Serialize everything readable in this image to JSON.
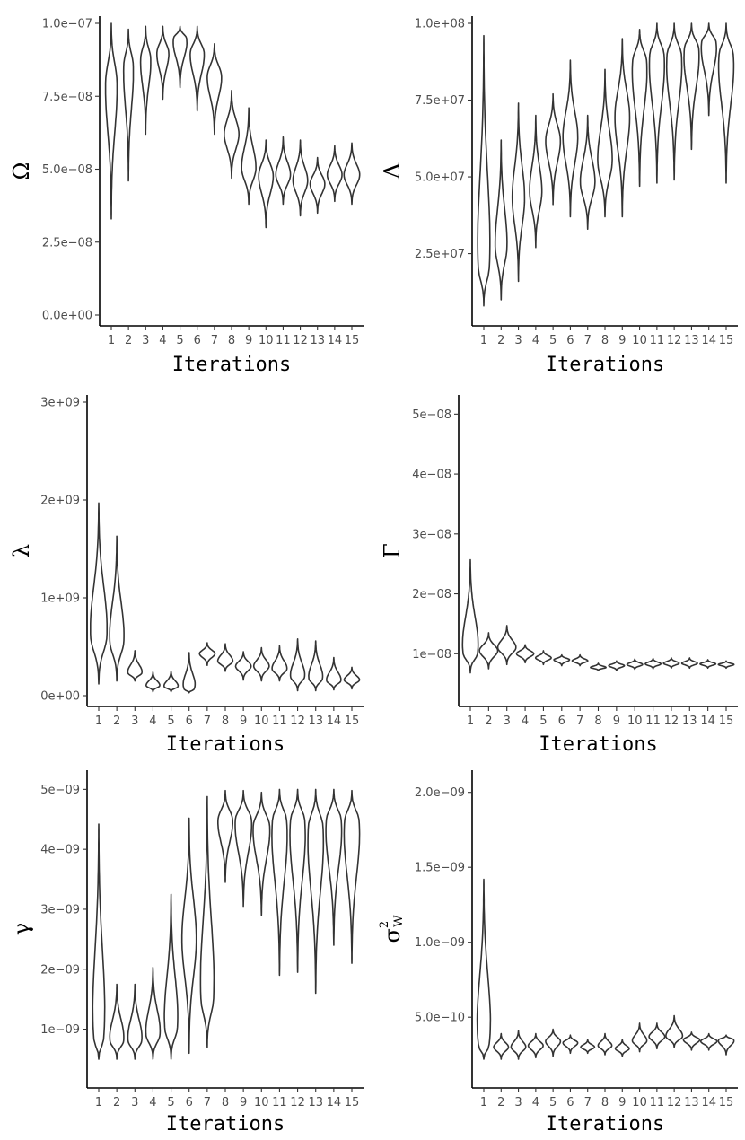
{
  "chart_data": [
    {
      "type": "violin",
      "title": "",
      "xlabel": "Iterations",
      "ylabel": "Ω",
      "ylim": [
        0,
        1e-07
      ],
      "yticks": [
        0,
        2.5e-08,
        5e-08,
        7.5e-08,
        1e-07
      ],
      "ytick_labels": [
        "0.0e+00",
        "2.5e−08",
        "5.0e−08",
        "7.5e−08",
        "1.0e−07"
      ],
      "categories": [
        "1",
        "2",
        "3",
        "4",
        "5",
        "6",
        "7",
        "8",
        "9",
        "10",
        "11",
        "12",
        "13",
        "14",
        "15"
      ],
      "violins": [
        {
          "min": 3.3e-08,
          "max": 1e-07,
          "mode": 8e-08,
          "width": 0.25
        },
        {
          "min": 4.6e-08,
          "max": 9.8e-08,
          "mode": 8.6e-08,
          "width": 0.22
        },
        {
          "min": 6.2e-08,
          "max": 9.9e-08,
          "mode": 8.8e-08,
          "width": 0.22
        },
        {
          "min": 7.4e-08,
          "max": 9.9e-08,
          "mode": 9e-08,
          "width": 0.25
        },
        {
          "min": 7.8e-08,
          "max": 9.9e-08,
          "mode": 9.5e-08,
          "width": 0.32
        },
        {
          "min": 7e-08,
          "max": 9.9e-08,
          "mode": 9e-08,
          "width": 0.3
        },
        {
          "min": 6.2e-08,
          "max": 9.3e-08,
          "mode": 8.2e-08,
          "width": 0.3
        },
        {
          "min": 4.7e-08,
          "max": 7.7e-08,
          "mode": 6.2e-08,
          "width": 0.3
        },
        {
          "min": 3.8e-08,
          "max": 7.1e-08,
          "mode": 5e-08,
          "width": 0.3
        },
        {
          "min": 3e-08,
          "max": 6e-08,
          "mode": 4.8e-08,
          "width": 0.3
        },
        {
          "min": 3.8e-08,
          "max": 6.1e-08,
          "mode": 4.8e-08,
          "width": 0.3
        },
        {
          "min": 3.4e-08,
          "max": 6e-08,
          "mode": 4.6e-08,
          "width": 0.3
        },
        {
          "min": 3.5e-08,
          "max": 5.4e-08,
          "mode": 4.5e-08,
          "width": 0.3
        },
        {
          "min": 3.9e-08,
          "max": 5.8e-08,
          "mode": 4.8e-08,
          "width": 0.3
        },
        {
          "min": 3.8e-08,
          "max": 5.9e-08,
          "mode": 4.8e-08,
          "width": 0.32
        }
      ]
    },
    {
      "type": "violin",
      "title": "",
      "xlabel": "Iterations",
      "ylabel": "Λ",
      "ylim": [
        5000000.0,
        100000000.0
      ],
      "yticks": [
        25000000.0,
        50000000.0,
        75000000.0,
        100000000.0
      ],
      "ytick_labels": [
        "2.5e+07",
        "5.0e+07",
        "7.5e+07",
        "1.0e+08"
      ],
      "categories": [
        "1",
        "2",
        "3",
        "4",
        "5",
        "6",
        "7",
        "8",
        "9",
        "10",
        "11",
        "12",
        "13",
        "14",
        "15"
      ],
      "violins": [
        {
          "min": 8000000.0,
          "max": 96000000.0,
          "mode": 20000000.0,
          "width": 0.3
        },
        {
          "min": 10000000.0,
          "max": 62000000.0,
          "mode": 27000000.0,
          "width": 0.25
        },
        {
          "min": 16000000.0,
          "max": 74000000.0,
          "mode": 43000000.0,
          "width": 0.25
        },
        {
          "min": 27000000.0,
          "max": 70000000.0,
          "mode": 45000000.0,
          "width": 0.25
        },
        {
          "min": 41000000.0,
          "max": 77000000.0,
          "mode": 62000000.0,
          "width": 0.3
        },
        {
          "min": 37000000.0,
          "max": 88000000.0,
          "mode": 63000000.0,
          "width": 0.3
        },
        {
          "min": 33000000.0,
          "max": 70000000.0,
          "mode": 48000000.0,
          "width": 0.3
        },
        {
          "min": 37000000.0,
          "max": 85000000.0,
          "mode": 55000000.0,
          "width": 0.3
        },
        {
          "min": 37000000.0,
          "max": 95000000.0,
          "mode": 70000000.0,
          "width": 0.3
        },
        {
          "min": 47000000.0,
          "max": 98000000.0,
          "mode": 88000000.0,
          "width": 0.34
        },
        {
          "min": 48000000.0,
          "max": 100000000.0,
          "mode": 90000000.0,
          "width": 0.35
        },
        {
          "min": 49000000.0,
          "max": 100000000.0,
          "mode": 90000000.0,
          "width": 0.35
        },
        {
          "min": 59000000.0,
          "max": 100000000.0,
          "mode": 92000000.0,
          "width": 0.35
        },
        {
          "min": 70000000.0,
          "max": 100000000.0,
          "mode": 94000000.0,
          "width": 0.35
        },
        {
          "min": 48000000.0,
          "max": 100000000.0,
          "mode": 90000000.0,
          "width": 0.35
        }
      ]
    },
    {
      "type": "violin",
      "title": "",
      "xlabel": "Iterations",
      "ylabel": "λ",
      "ylim": [
        0,
        3000000000.0
      ],
      "yticks": [
        0,
        1000000000.0,
        2000000000.0,
        3000000000.0
      ],
      "ytick_labels": [
        "0e+00",
        "1e+09",
        "2e+09",
        "3e+09"
      ],
      "categories": [
        "1",
        "2",
        "3",
        "4",
        "5",
        "6",
        "7",
        "8",
        "9",
        "10",
        "11",
        "12",
        "13",
        "14",
        "15"
      ],
      "violins": [
        {
          "min": 120000000.0,
          "max": 1970000000.0,
          "mode": 600000000.0,
          "width": 0.35
        },
        {
          "min": 150000000.0,
          "max": 1630000000.0,
          "mode": 550000000.0,
          "width": 0.3
        },
        {
          "min": 150000000.0,
          "max": 460000000.0,
          "mode": 230000000.0,
          "width": 0.3
        },
        {
          "min": 40000000.0,
          "max": 240000000.0,
          "mode": 100000000.0,
          "width": 0.28
        },
        {
          "min": 40000000.0,
          "max": 250000000.0,
          "mode": 90000000.0,
          "width": 0.3
        },
        {
          "min": 30000000.0,
          "max": 440000000.0,
          "mode": 60000000.0,
          "width": 0.3
        },
        {
          "min": 310000000.0,
          "max": 540000000.0,
          "mode": 430000000.0,
          "width": 0.3
        },
        {
          "min": 250000000.0,
          "max": 530000000.0,
          "mode": 350000000.0,
          "width": 0.3
        },
        {
          "min": 160000000.0,
          "max": 450000000.0,
          "mode": 300000000.0,
          "width": 0.3
        },
        {
          "min": 150000000.0,
          "max": 490000000.0,
          "mode": 300000000.0,
          "width": 0.3
        },
        {
          "min": 150000000.0,
          "max": 510000000.0,
          "mode": 270000000.0,
          "width": 0.3
        },
        {
          "min": 50000000.0,
          "max": 580000000.0,
          "mode": 190000000.0,
          "width": 0.3
        },
        {
          "min": 50000000.0,
          "max": 560000000.0,
          "mode": 170000000.0,
          "width": 0.3
        },
        {
          "min": 60000000.0,
          "max": 390000000.0,
          "mode": 150000000.0,
          "width": 0.3
        },
        {
          "min": 70000000.0,
          "max": 290000000.0,
          "mode": 160000000.0,
          "width": 0.3
        }
      ]
    },
    {
      "type": "violin",
      "title": "",
      "xlabel": "Iterations",
      "ylabel": "Γ",
      "ylim": [
        3e-09,
        5.2e-08
      ],
      "yticks": [
        1e-08,
        2e-08,
        3e-08,
        4e-08,
        5e-08
      ],
      "ytick_labels": [
        "1e−08",
        "2e−08",
        "3e−08",
        "4e−08",
        "5e−08"
      ],
      "categories": [
        "1",
        "2",
        "3",
        "4",
        "5",
        "6",
        "7",
        "8",
        "9",
        "10",
        "11",
        "12",
        "13",
        "14",
        "15"
      ],
      "violins": [
        {
          "min": 6.8e-09,
          "max": 2.57e-08,
          "mode": 1e-08,
          "width": 0.35
        },
        {
          "min": 7.5e-09,
          "max": 1.35e-08,
          "mode": 1.05e-08,
          "width": 0.35
        },
        {
          "min": 8.2e-09,
          "max": 1.47e-08,
          "mode": 1.1e-08,
          "width": 0.35
        },
        {
          "min": 8.5e-09,
          "max": 1.15e-08,
          "mode": 1e-08,
          "width": 0.33
        },
        {
          "min": 8.2e-09,
          "max": 1.05e-08,
          "mode": 9.3e-09,
          "width": 0.3
        },
        {
          "min": 8e-09,
          "max": 9.8e-09,
          "mode": 9e-09,
          "width": 0.3
        },
        {
          "min": 8e-09,
          "max": 9.8e-09,
          "mode": 8.8e-09,
          "width": 0.3
        },
        {
          "min": 7.2e-09,
          "max": 8.4e-09,
          "mode": 7.7e-09,
          "width": 0.3
        },
        {
          "min": 7.2e-09,
          "max": 8.8e-09,
          "mode": 8e-09,
          "width": 0.3
        },
        {
          "min": 7.4e-09,
          "max": 9.1e-09,
          "mode": 8.2e-09,
          "width": 0.3
        },
        {
          "min": 7.5e-09,
          "max": 9.2e-09,
          "mode": 8.3e-09,
          "width": 0.3
        },
        {
          "min": 7.6e-09,
          "max": 9.3e-09,
          "mode": 8.4e-09,
          "width": 0.3
        },
        {
          "min": 7.6e-09,
          "max": 9.3e-09,
          "mode": 8.4e-09,
          "width": 0.3
        },
        {
          "min": 7.6e-09,
          "max": 9e-09,
          "mode": 8.3e-09,
          "width": 0.3
        },
        {
          "min": 7.6e-09,
          "max": 8.8e-09,
          "mode": 8.2e-09,
          "width": 0.3
        }
      ]
    },
    {
      "type": "violin",
      "title": "",
      "xlabel": "Iterations",
      "ylabel": "γ",
      "ylim": [
        2e-10,
        5.2e-09
      ],
      "yticks": [
        1e-09,
        2e-09,
        3e-09,
        4e-09,
        5e-09
      ],
      "ytick_labels": [
        "1e−09",
        "2e−09",
        "3e−09",
        "4e−09",
        "5e−09"
      ],
      "categories": [
        "1",
        "2",
        "3",
        "4",
        "5",
        "6",
        "7",
        "8",
        "9",
        "10",
        "11",
        "12",
        "13",
        "14",
        "15"
      ],
      "violins": [
        {
          "min": 5e-10,
          "max": 4.42e-09,
          "mode": 8e-10,
          "width": 0.3
        },
        {
          "min": 5e-10,
          "max": 1.75e-09,
          "mode": 8e-10,
          "width": 0.3
        },
        {
          "min": 5e-10,
          "max": 1.75e-09,
          "mode": 8e-10,
          "width": 0.3
        },
        {
          "min": 5e-10,
          "max": 2.03e-09,
          "mode": 9e-10,
          "width": 0.3
        },
        {
          "min": 5e-10,
          "max": 3.25e-09,
          "mode": 1e-09,
          "width": 0.3
        },
        {
          "min": 6e-10,
          "max": 4.52e-09,
          "mode": 2.5e-09,
          "width": 0.28
        },
        {
          "min": 7e-10,
          "max": 4.88e-09,
          "mode": 1.5e-09,
          "width": 0.3
        },
        {
          "min": 3.45e-09,
          "max": 4.98e-09,
          "mode": 4.5e-09,
          "width": 0.3
        },
        {
          "min": 3.05e-09,
          "max": 4.98e-09,
          "mode": 4.5e-09,
          "width": 0.35
        },
        {
          "min": 2.9e-09,
          "max": 4.95e-09,
          "mode": 4.4e-09,
          "width": 0.35
        },
        {
          "min": 1.9e-09,
          "max": 5e-09,
          "mode": 4.5e-09,
          "width": 0.35
        },
        {
          "min": 1.95e-09,
          "max": 5e-09,
          "mode": 4.5e-09,
          "width": 0.35
        },
        {
          "min": 1.6e-09,
          "max": 5e-09,
          "mode": 4.4e-09,
          "width": 0.35
        },
        {
          "min": 2.4e-09,
          "max": 5e-09,
          "mode": 4.5e-09,
          "width": 0.35
        },
        {
          "min": 2.1e-09,
          "max": 4.98e-09,
          "mode": 4.5e-09,
          "width": 0.35
        }
      ]
    },
    {
      "type": "violin",
      "title": "",
      "xlabel": "Iterations",
      "ylabel": "σ",
      "ylabel_superscript": "2",
      "ylabel_subscript": "W",
      "ylim": [
        1e-10,
        2.1e-09
      ],
      "yticks": [
        5e-10,
        1e-09,
        1.5e-09,
        2e-09
      ],
      "ytick_labels": [
        "5.0e−10",
        "1.0e−09",
        "1.5e−09",
        "2.0e−09"
      ],
      "categories": [
        "1",
        "2",
        "3",
        "4",
        "5",
        "6",
        "7",
        "8",
        "9",
        "10",
        "11",
        "12",
        "13",
        "14",
        "15"
      ],
      "violins": [
        {
          "min": 2.2e-10,
          "max": 1.42e-09,
          "mode": 3e-10,
          "width": 0.35
        },
        {
          "min": 2.2e-10,
          "max": 3.9e-10,
          "mode": 3e-10,
          "width": 0.3
        },
        {
          "min": 2.2e-10,
          "max": 4.1e-10,
          "mode": 3e-10,
          "width": 0.3
        },
        {
          "min": 2.3e-10,
          "max": 3.9e-10,
          "mode": 3.1e-10,
          "width": 0.3
        },
        {
          "min": 2.4e-10,
          "max": 4.2e-10,
          "mode": 3.4e-10,
          "width": 0.3
        },
        {
          "min": 2.6e-10,
          "max": 3.8e-10,
          "mode": 3.3e-10,
          "width": 0.3
        },
        {
          "min": 2.6e-10,
          "max": 3.5e-10,
          "mode": 3e-10,
          "width": 0.28
        },
        {
          "min": 2.5e-10,
          "max": 3.9e-10,
          "mode": 3.1e-10,
          "width": 0.28
        },
        {
          "min": 2.4e-10,
          "max": 3.5e-10,
          "mode": 2.9e-10,
          "width": 0.28
        },
        {
          "min": 2.7e-10,
          "max": 4.6e-10,
          "mode": 3.4e-10,
          "width": 0.3
        },
        {
          "min": 2.9e-10,
          "max": 4.6e-10,
          "mode": 3.7e-10,
          "width": 0.32
        },
        {
          "min": 3e-10,
          "max": 5.1e-10,
          "mode": 3.7e-10,
          "width": 0.35
        },
        {
          "min": 2.8e-10,
          "max": 4e-10,
          "mode": 3.5e-10,
          "width": 0.33
        },
        {
          "min": 2.8e-10,
          "max": 3.9e-10,
          "mode": 3.4e-10,
          "width": 0.33
        },
        {
          "min": 2.5e-10,
          "max": 3.8e-10,
          "mode": 3.5e-10,
          "width": 0.35
        }
      ]
    }
  ]
}
